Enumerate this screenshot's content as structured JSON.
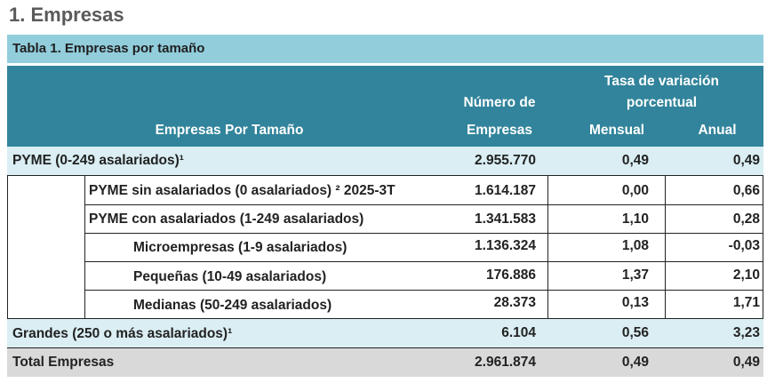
{
  "section_title": "1. Empresas",
  "table_caption": "Tabla 1. Empresas por tamaño",
  "headers": {
    "row_label": "Empresas Por Tamaño",
    "number_line1": "Número de",
    "number_line2": "Empresas",
    "rate_line1": "Tasa de variación",
    "rate_line2": "porcentual",
    "monthly": "Mensual",
    "annual": "Anual"
  },
  "rows": [
    {
      "label": "PYME (0-249 asalariados)¹",
      "number": "2.955.770",
      "monthly": "0,49",
      "annual": "0,49"
    },
    {
      "label": "PYME sin asalariados (0 asalariados) ² 2025-3T",
      "number": "1.614.187",
      "monthly": "0,00",
      "annual": "0,66"
    },
    {
      "label": "PYME con asalariados (1-249 asalariados)",
      "number": "1.341.583",
      "monthly": "1,10",
      "annual": "0,28"
    },
    {
      "label": "Microempresas (1-9 asalariados)",
      "number": "1.136.324",
      "monthly": "1,08",
      "annual": "-0,03"
    },
    {
      "label": "Pequeñas (10-49 asalariados)",
      "number": "176.886",
      "monthly": "1,37",
      "annual": "2,10"
    },
    {
      "label": "Medianas (50-249 asalariados)",
      "number": "28.373",
      "monthly": "0,13",
      "annual": "1,71"
    },
    {
      "label": "Grandes (250 o más asalariados)¹",
      "number": "6.104",
      "monthly": "0,56",
      "annual": "3,23"
    },
    {
      "label": "Total Empresas",
      "number": "2.961.874",
      "monthly": "0,49",
      "annual": "0,49"
    }
  ],
  "colors": {
    "caption_bg": "#92cddc",
    "header_bg": "#31849b",
    "highlight_row_bg": "#daeef3",
    "total_row_bg": "#d9d9d9"
  }
}
